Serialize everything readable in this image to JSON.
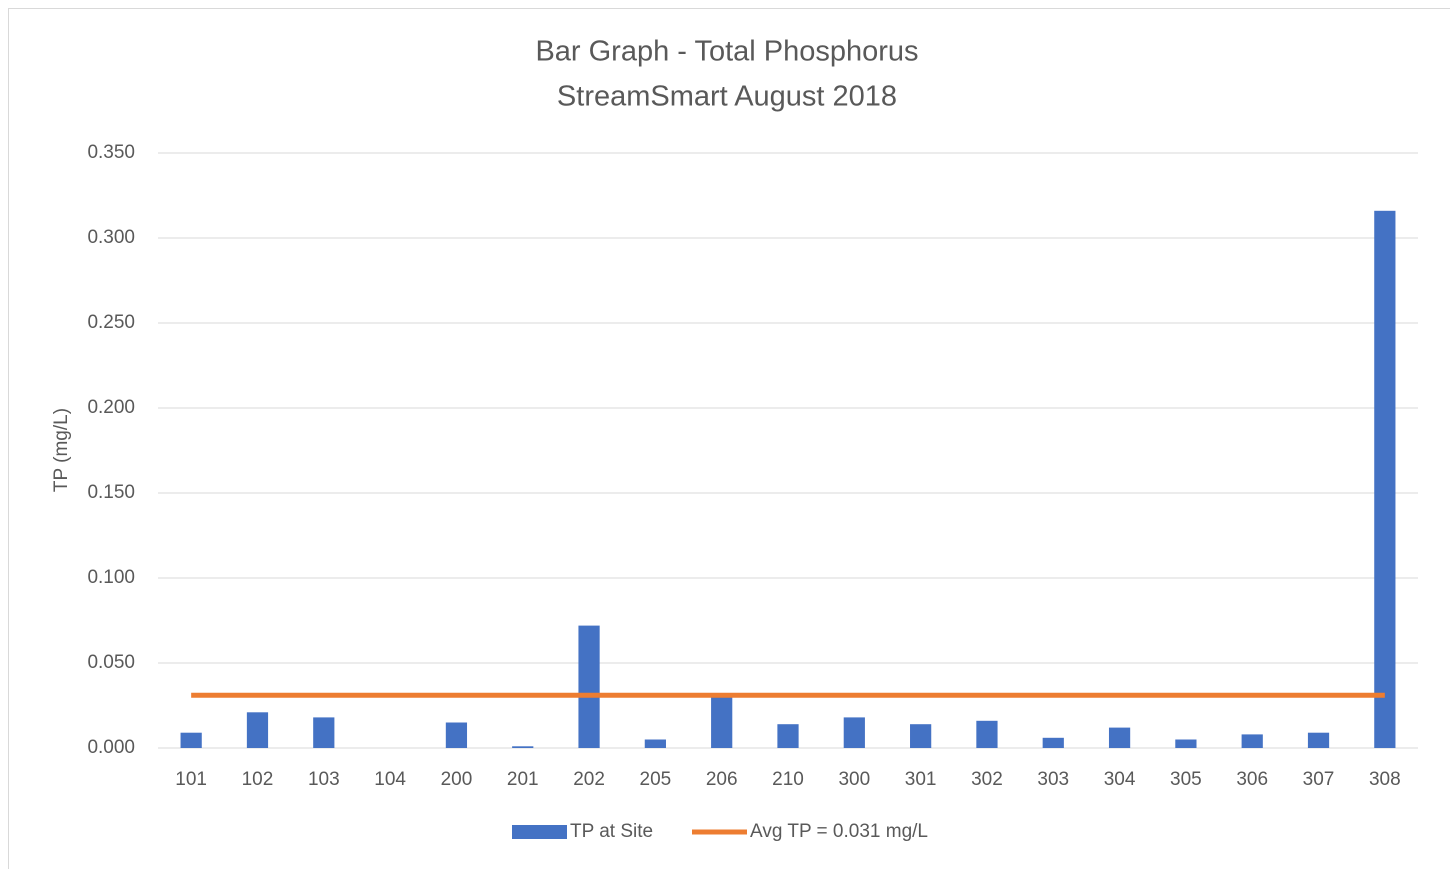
{
  "chart_data": {
    "type": "bar",
    "title": "Bar Graph - Total Phosphorus",
    "subtitle": "StreamSmart August 2018",
    "y_label": "TP (mg/L)",
    "categories": [
      "101",
      "102",
      "103",
      "104",
      "200",
      "201",
      "202",
      "205",
      "206",
      "210",
      "300",
      "301",
      "302",
      "303",
      "304",
      "305",
      "306",
      "307",
      "308"
    ],
    "series": [
      {
        "name": "TP at Site",
        "type": "bar",
        "color": "#4472c4",
        "values": [
          0.009,
          0.021,
          0.018,
          0,
          0.015,
          0.001,
          0.072,
          0.005,
          0.032,
          0.014,
          0.018,
          0.014,
          0.016,
          0.006,
          0.012,
          0.005,
          0.008,
          0.009,
          0.316
        ]
      },
      {
        "name": "Avg TP = 0.031 mg/L",
        "type": "line",
        "color": "#ed7d31",
        "values": [
          0.031,
          0.031,
          0.031,
          0.031,
          0.031,
          0.031,
          0.031,
          0.031,
          0.031,
          0.031,
          0.031,
          0.031,
          0.031,
          0.031,
          0.031,
          0.031,
          0.031,
          0.031,
          0.031
        ]
      }
    ],
    "ylim": [
      0,
      0.35
    ],
    "yticks": [
      {
        "value": 0,
        "label": "0.000"
      },
      {
        "value": 0.05,
        "label": "0.050"
      },
      {
        "value": 0.1,
        "label": "0.100"
      },
      {
        "value": 0.15,
        "label": "0.150"
      },
      {
        "value": 0.2,
        "label": "0.200"
      },
      {
        "value": 0.25,
        "label": "0.250"
      },
      {
        "value": 0.3,
        "label": "0.300"
      },
      {
        "value": 0.35,
        "label": "0.350"
      }
    ],
    "grid": true,
    "legend": "bottom"
  }
}
